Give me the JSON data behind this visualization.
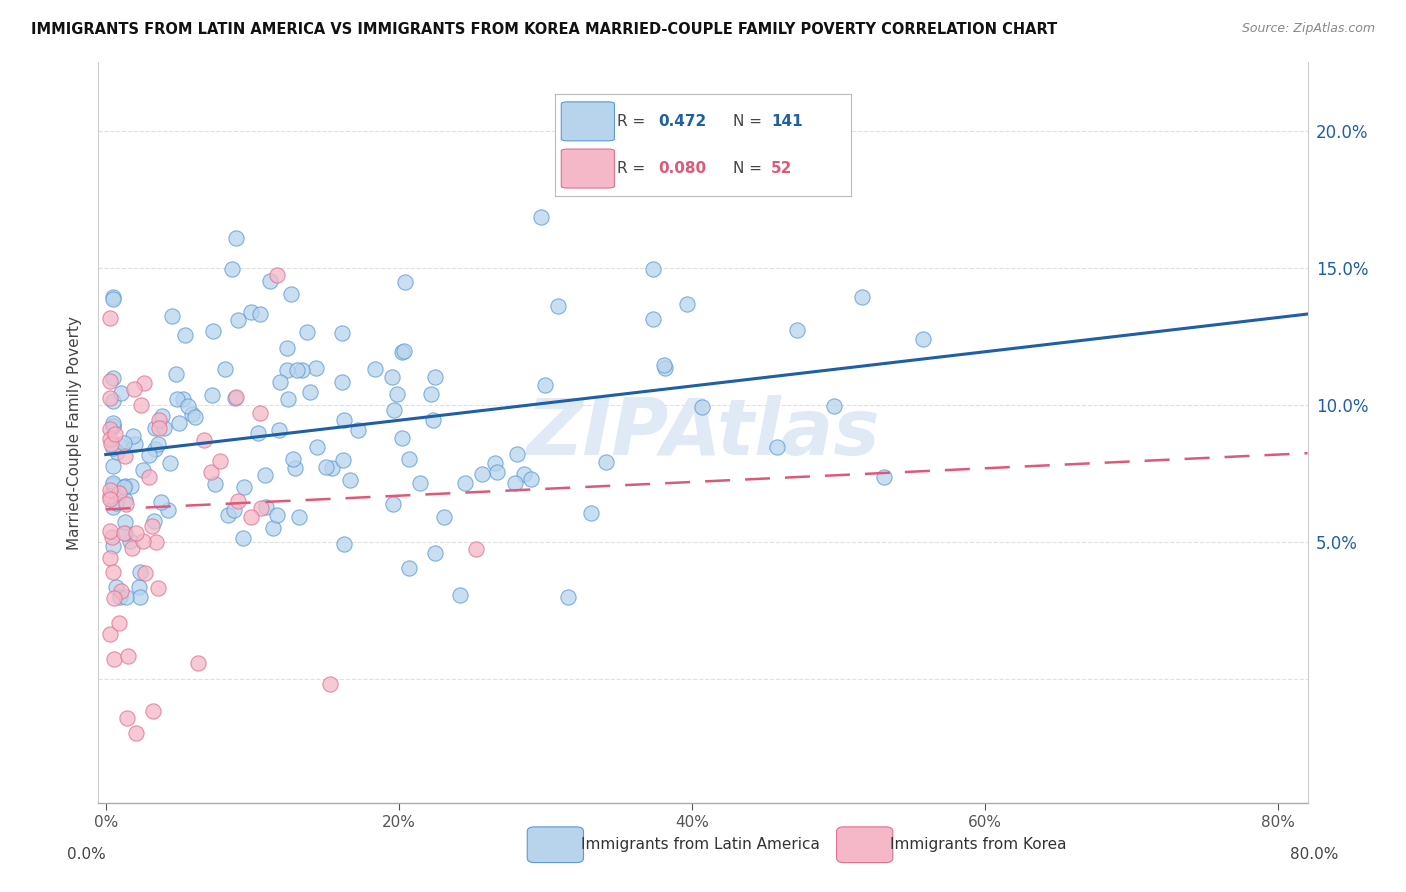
{
  "title": "IMMIGRANTS FROM LATIN AMERICA VS IMMIGRANTS FROM KOREA MARRIED-COUPLE FAMILY POVERTY CORRELATION CHART",
  "source": "Source: ZipAtlas.com",
  "ylabel": "Married-Couple Family Poverty",
  "watermark": "ZIPAtlas",
  "blue_R": 0.472,
  "blue_N": 141,
  "pink_R": 0.08,
  "pink_N": 52,
  "blue_color": "#b8d4ed",
  "blue_edge_color": "#5b9bd5",
  "blue_line_color": "#1f5fa6",
  "pink_color": "#f4b8c8",
  "pink_edge_color": "#e07090",
  "pink_line_color": "#e05878",
  "blue_label": "Immigrants from Latin America",
  "pink_label": "Immigrants from Korea",
  "xlim": [
    -0.005,
    0.82
  ],
  "ylim": [
    -0.045,
    0.225
  ],
  "x_ticks": [
    0.0,
    0.2,
    0.4,
    0.6,
    0.8
  ],
  "y_ticks": [
    0.0,
    0.05,
    0.1,
    0.15,
    0.2
  ],
  "y_right_labels": [
    "",
    "5.0%",
    "10.0%",
    "15.0%",
    "20.0%"
  ],
  "background_color": "#ffffff",
  "grid_color": "#e0e0e0",
  "blue_line_start_y": 0.082,
  "blue_line_end_y": 0.132,
  "pink_line_start_y": 0.062,
  "pink_line_end_y": 0.082
}
